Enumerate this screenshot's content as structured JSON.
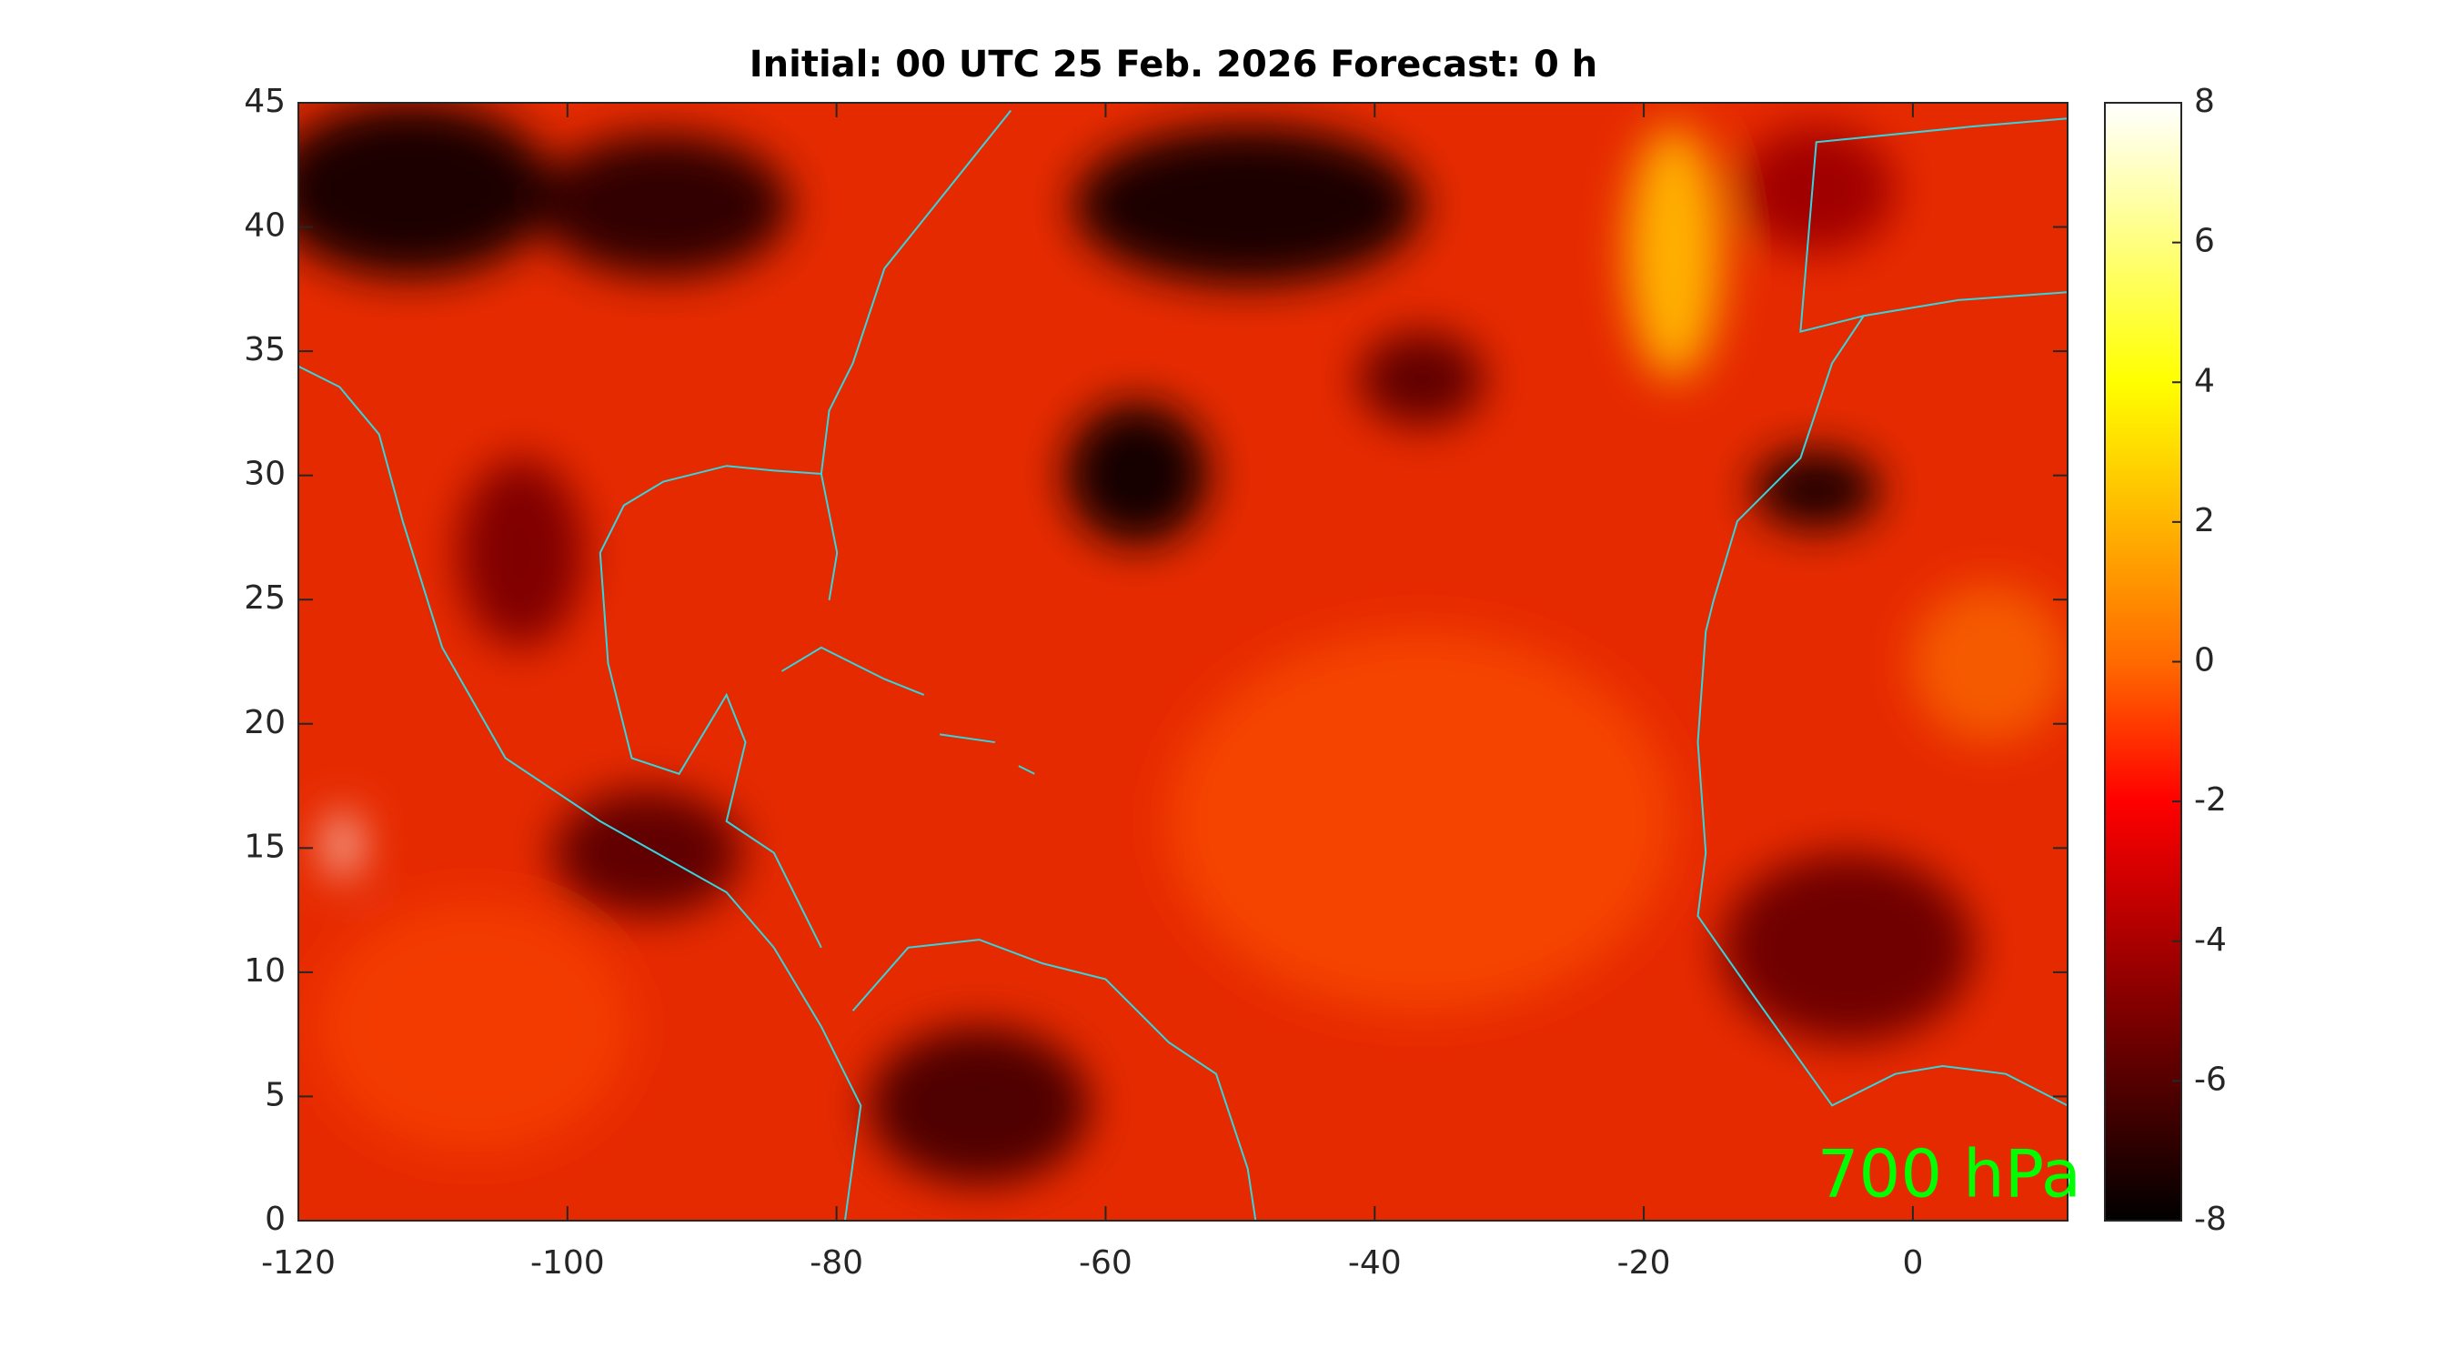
{
  "chart_data": {
    "type": "heatmap",
    "title": "Initial: 00 UTC 25 Feb. 2026 Forecast: 0 h",
    "annotation": "700 hPa",
    "annotation_color": "#00ff00",
    "xlim": [
      -120,
      11.5
    ],
    "xticks": [
      -120,
      -100,
      -80,
      -60,
      -40,
      -20,
      0
    ],
    "ylim": [
      0,
      45
    ],
    "yticks": [
      0,
      5,
      10,
      15,
      20,
      25,
      30,
      35,
      40,
      45
    ],
    "colorbar_lim": [
      -8,
      8
    ],
    "colorbar_ticks": [
      -8,
      -6,
      -4,
      -2,
      0,
      2,
      4,
      6,
      8
    ],
    "coastline_color": "#33d6e0"
  }
}
